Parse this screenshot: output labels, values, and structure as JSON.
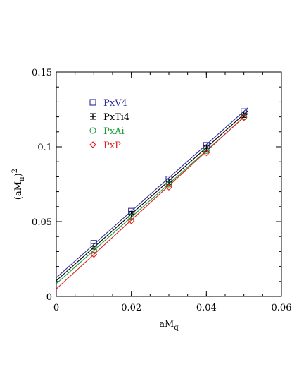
{
  "chart_data": {
    "type": "scatter",
    "xlabel": "aM",
    "xlabel_sub": "q",
    "ylabel": "(aM",
    "ylabel_sub": "π",
    "ylabel_tail": ")",
    "ylabel_sup": "2",
    "xlim": [
      0,
      0.06
    ],
    "ylim": [
      0,
      0.15
    ],
    "xticks": [
      0,
      0.02,
      0.04,
      0.06
    ],
    "xtick_labels": [
      "0",
      "0.02",
      "0.04",
      "0.06"
    ],
    "yticks": [
      0,
      0.05,
      0.1,
      0.15
    ],
    "ytick_labels": [
      "0",
      "0.05",
      "0.1",
      "0.15"
    ],
    "grid": false,
    "legend_position": "top-left",
    "series": [
      {
        "name": "PxV4",
        "marker": "square",
        "color": "#2b2ba0",
        "x": [
          0.01,
          0.02,
          0.03,
          0.04,
          0.05
        ],
        "y": [
          0.0355,
          0.057,
          0.0785,
          0.101,
          0.1235
        ],
        "fit": {
          "intercept": 0.0125,
          "slope": 2.225
        }
      },
      {
        "name": "PxTi4",
        "marker": "plus-box",
        "color": "#000000",
        "x": [
          0.01,
          0.02,
          0.03,
          0.04,
          0.05
        ],
        "y": [
          0.0335,
          0.055,
          0.0765,
          0.099,
          0.1215
        ],
        "fit": {
          "intercept": 0.0105,
          "slope": 2.225
        }
      },
      {
        "name": "PxAi",
        "marker": "circle",
        "color": "#1a9a3a",
        "x": [
          0.01,
          0.02,
          0.03,
          0.04,
          0.05
        ],
        "y": [
          0.031,
          0.053,
          0.075,
          0.0975,
          0.12
        ],
        "fit": {
          "intercept": 0.0085,
          "slope": 2.225
        }
      },
      {
        "name": "PxP",
        "marker": "diamond",
        "color": "#e02020",
        "x": [
          0.01,
          0.02,
          0.03,
          0.04,
          0.05
        ],
        "y": [
          0.028,
          0.0505,
          0.073,
          0.096,
          0.1195
        ],
        "fit": {
          "intercept": 0.005,
          "slope": 2.3
        }
      }
    ]
  }
}
